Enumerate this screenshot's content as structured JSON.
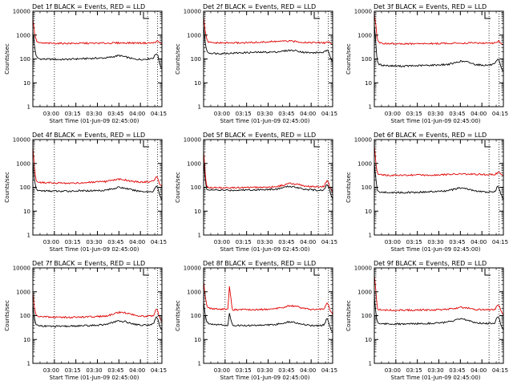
{
  "figure": {
    "x_ticks": [
      "03:00",
      "03:15",
      "03:30",
      "03:45",
      "04:00",
      "04:15"
    ],
    "y_ticks": [
      "1",
      "10",
      "100",
      "1000",
      "10000"
    ],
    "xlabel": "Start Time (01-Jun-09 02:45:00)",
    "ylabel": "Counts/sec",
    "colors": {
      "events": "#000000",
      "lld": "#e00000",
      "axes": "#000000"
    }
  },
  "chart_data": [
    {
      "type": "line",
      "title": "Det 1f BLACK = Events, RED = LLD",
      "ylim": [
        1,
        10000
      ],
      "yscale": "log",
      "xlim_minutes": [
        0,
        90
      ],
      "vlines_minutes": [
        15,
        80,
        87
      ],
      "series": [
        {
          "name": "Events",
          "color": "#000000",
          "x": [
            0,
            1,
            2,
            3,
            5,
            10,
            20,
            30,
            40,
            50,
            55,
            60,
            65,
            70,
            75,
            80,
            84,
            86,
            87,
            88,
            89,
            90
          ],
          "y": [
            1500,
            400,
            160,
            110,
            100,
            98,
            95,
            100,
            105,
            110,
            120,
            140,
            120,
            100,
            95,
            100,
            110,
            170,
            150,
            80,
            50,
            40
          ]
        },
        {
          "name": "LLD",
          "color": "#e00000",
          "x": [
            0,
            1,
            2,
            3,
            5,
            10,
            20,
            30,
            40,
            50,
            60,
            70,
            80,
            84,
            86,
            87,
            88,
            89,
            90
          ],
          "y": [
            5000,
            1500,
            700,
            520,
            460,
            455,
            450,
            450,
            455,
            460,
            470,
            470,
            465,
            470,
            520,
            560,
            500,
            440,
            420
          ]
        }
      ]
    },
    {
      "type": "line",
      "title": "Det 2f BLACK = Events, RED = LLD",
      "ylim": [
        1,
        10000
      ],
      "yscale": "log",
      "xlim_minutes": [
        0,
        90
      ],
      "vlines_minutes": [
        15,
        80,
        87
      ],
      "series": [
        {
          "name": "Events",
          "color": "#000000",
          "x": [
            0,
            1,
            2,
            3,
            5,
            10,
            20,
            30,
            40,
            50,
            55,
            60,
            65,
            70,
            75,
            80,
            84,
            86,
            87,
            88,
            89,
            90
          ],
          "y": [
            2500,
            600,
            230,
            190,
            175,
            170,
            175,
            185,
            190,
            195,
            210,
            230,
            220,
            190,
            180,
            185,
            190,
            230,
            200,
            140,
            100,
            80
          ]
        },
        {
          "name": "LLD",
          "color": "#e00000",
          "x": [
            0,
            1,
            2,
            3,
            5,
            10,
            20,
            30,
            40,
            50,
            60,
            70,
            80,
            84,
            86,
            87,
            88,
            89,
            90
          ],
          "y": [
            6000,
            1800,
            700,
            520,
            480,
            470,
            470,
            480,
            500,
            540,
            560,
            500,
            480,
            470,
            500,
            540,
            480,
            430,
            400
          ]
        }
      ]
    },
    {
      "type": "line",
      "title": "Det 3f BLACK = Events, RED = LLD",
      "ylim": [
        1,
        10000
      ],
      "yscale": "log",
      "xlim_minutes": [
        0,
        90
      ],
      "vlines_minutes": [
        15,
        80,
        87
      ],
      "series": [
        {
          "name": "Events",
          "color": "#000000",
          "x": [
            0,
            1,
            2,
            3,
            5,
            10,
            20,
            30,
            40,
            50,
            55,
            60,
            65,
            70,
            75,
            80,
            84,
            86,
            87,
            88,
            89,
            90
          ],
          "y": [
            3000,
            500,
            80,
            60,
            55,
            52,
            50,
            52,
            55,
            58,
            65,
            80,
            75,
            60,
            55,
            55,
            60,
            95,
            85,
            50,
            38,
            30
          ]
        },
        {
          "name": "LLD",
          "color": "#e00000",
          "x": [
            0,
            1,
            2,
            3,
            5,
            10,
            20,
            30,
            40,
            50,
            60,
            70,
            80,
            84,
            86,
            87,
            88,
            89,
            90
          ],
          "y": [
            8000,
            3000,
            700,
            480,
            450,
            440,
            430,
            430,
            440,
            450,
            460,
            470,
            460,
            470,
            520,
            560,
            480,
            430,
            400
          ]
        }
      ]
    },
    {
      "type": "line",
      "title": "Det 4f BLACK = Events, RED = LLD",
      "ylim": [
        1,
        10000
      ],
      "yscale": "log",
      "xlim_minutes": [
        0,
        90
      ],
      "vlines_minutes": [
        15,
        80,
        87
      ],
      "series": [
        {
          "name": "Events",
          "color": "#000000",
          "x": [
            0,
            1,
            2,
            3,
            5,
            10,
            20,
            30,
            40,
            50,
            55,
            60,
            65,
            70,
            75,
            80,
            84,
            86,
            87,
            88,
            89,
            90
          ],
          "y": [
            1000,
            250,
            90,
            75,
            72,
            70,
            68,
            70,
            72,
            75,
            85,
            100,
            90,
            75,
            68,
            65,
            68,
            110,
            95,
            60,
            40,
            30
          ]
        },
        {
          "name": "LLD",
          "color": "#e00000",
          "x": [
            0,
            1,
            2,
            3,
            5,
            10,
            20,
            30,
            40,
            50,
            55,
            60,
            65,
            70,
            75,
            80,
            84,
            86,
            87,
            88,
            89,
            90
          ],
          "y": [
            5000,
            900,
            220,
            170,
            160,
            155,
            150,
            150,
            160,
            170,
            190,
            220,
            200,
            175,
            165,
            170,
            180,
            280,
            250,
            160,
            120,
            100
          ]
        }
      ]
    },
    {
      "type": "line",
      "title": "Det 5f BLACK = Events, RED = LLD",
      "ylim": [
        1,
        10000
      ],
      "yscale": "log",
      "xlim_minutes": [
        0,
        90
      ],
      "vlines_minutes": [
        15,
        80,
        87
      ],
      "series": [
        {
          "name": "Events",
          "color": "#000000",
          "x": [
            0,
            1,
            2,
            3,
            5,
            10,
            20,
            30,
            40,
            50,
            55,
            60,
            65,
            70,
            75,
            80,
            84,
            86,
            87,
            88,
            89,
            90
          ],
          "y": [
            1200,
            250,
            90,
            80,
            78,
            76,
            75,
            78,
            80,
            82,
            95,
            110,
            100,
            85,
            78,
            75,
            78,
            130,
            110,
            70,
            45,
            35
          ]
        },
        {
          "name": "LLD",
          "color": "#e00000",
          "x": [
            0,
            1,
            2,
            3,
            5,
            10,
            20,
            30,
            40,
            50,
            55,
            60,
            65,
            70,
            75,
            80,
            84,
            86,
            87,
            88,
            89,
            90
          ],
          "y": [
            3500,
            500,
            115,
            100,
            98,
            95,
            95,
            98,
            100,
            105,
            120,
            145,
            135,
            115,
            105,
            105,
            110,
            190,
            165,
            100,
            75,
            60
          ]
        }
      ]
    },
    {
      "type": "line",
      "title": "Det 6f BLACK = Events, RED = LLD",
      "ylim": [
        1,
        10000
      ],
      "yscale": "log",
      "xlim_minutes": [
        0,
        90
      ],
      "vlines_minutes": [
        15,
        80,
        87
      ],
      "series": [
        {
          "name": "Events",
          "color": "#000000",
          "x": [
            0,
            1,
            2,
            3,
            5,
            10,
            20,
            30,
            40,
            50,
            55,
            60,
            65,
            70,
            75,
            80,
            84,
            86,
            87,
            88,
            89,
            90
          ],
          "y": [
            1000,
            250,
            75,
            65,
            62,
            60,
            60,
            62,
            65,
            70,
            80,
            95,
            85,
            70,
            65,
            62,
            65,
            110,
            95,
            60,
            40,
            30
          ]
        },
        {
          "name": "LLD",
          "color": "#e00000",
          "x": [
            0,
            1,
            2,
            3,
            5,
            10,
            20,
            30,
            40,
            50,
            60,
            70,
            80,
            84,
            86,
            87,
            88,
            89,
            90
          ],
          "y": [
            6000,
            1200,
            400,
            340,
            330,
            320,
            320,
            325,
            330,
            340,
            360,
            350,
            340,
            350,
            400,
            430,
            360,
            320,
            300
          ]
        }
      ]
    },
    {
      "type": "line",
      "title": "Det 7f BLACK = Events, RED = LLD",
      "ylim": [
        1,
        10000
      ],
      "yscale": "log",
      "xlim_minutes": [
        0,
        90
      ],
      "vlines_minutes": [
        15,
        80,
        87
      ],
      "series": [
        {
          "name": "Events",
          "color": "#000000",
          "x": [
            0,
            1,
            2,
            3,
            5,
            10,
            20,
            30,
            40,
            50,
            55,
            60,
            65,
            70,
            75,
            80,
            84,
            86,
            87,
            88,
            89,
            90
          ],
          "y": [
            300,
            80,
            45,
            40,
            38,
            36,
            35,
            37,
            38,
            42,
            50,
            60,
            55,
            45,
            40,
            40,
            45,
            90,
            75,
            45,
            30,
            25
          ]
        },
        {
          "name": "LLD",
          "color": "#e00000",
          "x": [
            0,
            1,
            2,
            3,
            5,
            10,
            20,
            30,
            40,
            50,
            55,
            60,
            65,
            70,
            75,
            80,
            84,
            86,
            87,
            88,
            89,
            90
          ],
          "y": [
            1000,
            250,
            110,
            95,
            90,
            88,
            85,
            85,
            88,
            95,
            110,
            140,
            130,
            110,
            95,
            95,
            100,
            180,
            160,
            95,
            70,
            55
          ]
        }
      ]
    },
    {
      "type": "line",
      "title": "Det 8f BLACK = Events, RED = LLD",
      "ylim": [
        1,
        10000
      ],
      "yscale": "log",
      "xlim_minutes": [
        0,
        90
      ],
      "vlines_minutes": [
        15,
        80,
        87
      ],
      "series": [
        {
          "name": "Events",
          "color": "#000000",
          "x": [
            0,
            1,
            2,
            3,
            5,
            10,
            17,
            18,
            20,
            30,
            40,
            50,
            55,
            60,
            65,
            70,
            75,
            80,
            84,
            86,
            87,
            88,
            89,
            90
          ],
          "y": [
            400,
            120,
            60,
            50,
            45,
            42,
            40,
            120,
            40,
            38,
            40,
            42,
            48,
            55,
            50,
            42,
            38,
            38,
            40,
            75,
            60,
            35,
            25,
            20
          ]
        },
        {
          "name": "LLD",
          "color": "#e00000",
          "x": [
            0,
            1,
            2,
            3,
            5,
            10,
            17,
            18,
            20,
            30,
            40,
            50,
            55,
            60,
            65,
            70,
            75,
            80,
            84,
            86,
            87,
            88,
            89,
            90
          ],
          "y": [
            3000,
            800,
            300,
            230,
            200,
            190,
            180,
            1800,
            180,
            175,
            180,
            190,
            220,
            260,
            240,
            200,
            180,
            180,
            190,
            320,
            280,
            170,
            140,
            110
          ]
        }
      ]
    },
    {
      "type": "line",
      "title": "Det 9f BLACK = Events, RED = LLD",
      "ylim": [
        1,
        10000
      ],
      "yscale": "log",
      "xlim_minutes": [
        0,
        90
      ],
      "vlines_minutes": [
        15,
        80,
        87
      ],
      "series": [
        {
          "name": "Events",
          "color": "#000000",
          "x": [
            0,
            1,
            2,
            3,
            5,
            10,
            20,
            30,
            40,
            50,
            55,
            60,
            65,
            70,
            75,
            80,
            84,
            86,
            87,
            88,
            89,
            90
          ],
          "y": [
            600,
            150,
            55,
            48,
            46,
            45,
            44,
            46,
            48,
            52,
            60,
            72,
            65,
            52,
            48,
            47,
            50,
            90,
            80,
            48,
            32,
            25
          ]
        },
        {
          "name": "LLD",
          "color": "#e00000",
          "x": [
            0,
            1,
            2,
            3,
            5,
            10,
            20,
            30,
            40,
            50,
            55,
            60,
            65,
            70,
            75,
            80,
            84,
            86,
            87,
            88,
            89,
            90
          ],
          "y": [
            5000,
            1200,
            220,
            180,
            175,
            170,
            170,
            172,
            175,
            180,
            195,
            220,
            210,
            185,
            175,
            175,
            180,
            300,
            270,
            170,
            130,
            110
          ]
        }
      ]
    }
  ]
}
